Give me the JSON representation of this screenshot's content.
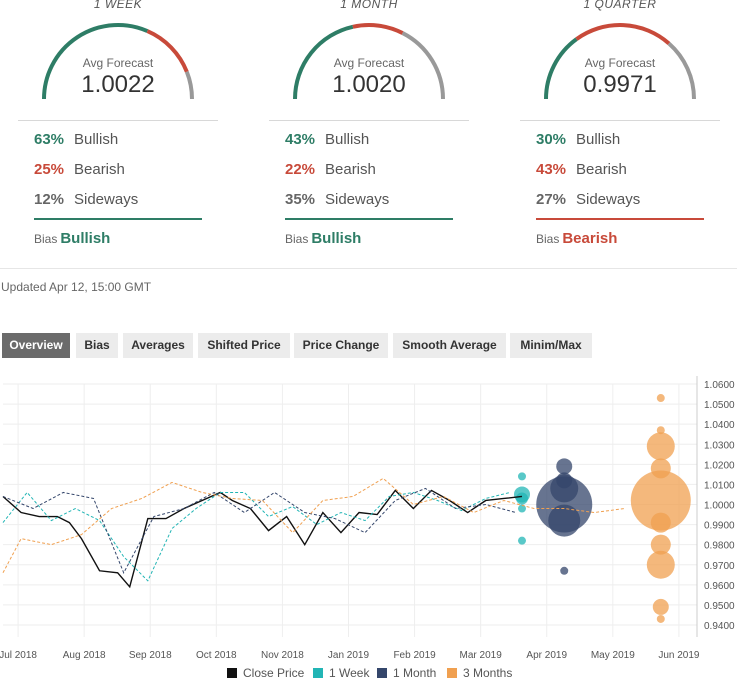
{
  "cards": [
    {
      "period": "1 WEEK",
      "avg_label": "Avg Forecast",
      "avg_value": "1.0022",
      "bullish_pct": "63%",
      "bullish_label": "Bullish",
      "bearish_pct": "25%",
      "bearish_label": "Bearish",
      "sideways_pct": "12%",
      "sideways_label": "Sideways",
      "bias_label": "Bias",
      "bias_value": "Bullish",
      "bias_color": "#2e7d66",
      "gauge": {
        "bullish": 0.63,
        "bearish": 0.25,
        "sideways": 0.12
      }
    },
    {
      "period": "1 MONTH",
      "avg_label": "Avg Forecast",
      "avg_value": "1.0020",
      "bullish_pct": "43%",
      "bullish_label": "Bullish",
      "bearish_pct": "22%",
      "bearish_label": "Bearish",
      "sideways_pct": "35%",
      "sideways_label": "Sideways",
      "bias_label": "Bias",
      "bias_value": "Bullish",
      "bias_color": "#2e7d66",
      "gauge": {
        "bullish": 0.43,
        "bearish": 0.22,
        "sideways": 0.35
      }
    },
    {
      "period": "1 QUARTER",
      "avg_label": "Avg Forecast",
      "avg_value": "0.9971",
      "bullish_pct": "30%",
      "bullish_label": "Bullish",
      "bearish_pct": "43%",
      "bearish_label": "Bearish",
      "sideways_pct": "27%",
      "sideways_label": "Sideways",
      "bias_label": "Bias",
      "bias_value": "Bearish",
      "bias_color": "#c84a3a",
      "gauge": {
        "bullish": 0.3,
        "bearish": 0.43,
        "sideways": 0.27
      }
    }
  ],
  "colors": {
    "bullish": "#2e7d66",
    "bearish": "#c84a3a",
    "sideways": "#999999"
  },
  "updated": "Updated Apr 12, 15:00 GMT",
  "tabs": [
    {
      "label": "Overview",
      "active": true
    },
    {
      "label": "Bias",
      "active": false
    },
    {
      "label": "Averages",
      "active": false
    },
    {
      "label": "Shifted Price",
      "active": false
    },
    {
      "label": "Price Change",
      "active": false
    },
    {
      "label": "Smooth Average",
      "active": false
    },
    {
      "label": "Minim/Max",
      "active": false
    }
  ],
  "chart_data": {
    "type": "line",
    "x_tick_labels": [
      "Jul 2018",
      "Aug 2018",
      "Sep 2018",
      "Oct 2018",
      "Nov 2018",
      "Jan 2019",
      "Feb 2019",
      "Mar 2019",
      "Apr 2019",
      "May 2019",
      "Jun 2019"
    ],
    "y_tick_labels": [
      "1.0600",
      "1.0500",
      "1.0400",
      "1.0300",
      "1.0200",
      "1.0100",
      "1.0000",
      "0.9900",
      "0.9800",
      "0.9700",
      "0.9600",
      "0.9500",
      "0.9400"
    ],
    "ylim": [
      0.94,
      1.06
    ],
    "xlim": [
      0,
      11.5
    ],
    "grid": true,
    "legend_position": "bottom",
    "series": [
      {
        "name": "Close Price",
        "color": "#111111",
        "dash": false,
        "x": [
          0,
          0.3,
          0.6,
          0.9,
          1.1,
          1.3,
          1.6,
          1.9,
          2.1,
          2.4,
          2.7,
          3.0,
          3.3,
          3.6,
          3.8,
          4.1,
          4.4,
          4.7,
          5.0,
          5.3,
          5.6,
          5.9,
          6.2,
          6.5,
          6.8,
          7.1,
          7.4,
          7.7,
          8.0,
          8.3,
          8.6
        ],
        "y": [
          1.004,
          0.996,
          0.994,
          0.994,
          0.991,
          0.983,
          0.967,
          0.966,
          0.959,
          0.993,
          0.993,
          0.998,
          1.002,
          1.006,
          1.002,
          0.998,
          0.987,
          0.994,
          0.98,
          0.996,
          0.986,
          0.996,
          0.995,
          1.007,
          0.998,
          1.007,
          1.002,
          0.996,
          1.002,
          1.003,
          1.004
        ]
      },
      {
        "name": "1 Week",
        "color": "#22b5b5",
        "dash": true,
        "x": [
          0,
          0.4,
          0.8,
          1.2,
          1.6,
          2.0,
          2.4,
          2.8,
          3.2,
          3.6,
          4.0,
          4.4,
          4.8,
          5.2,
          5.6,
          6.0,
          6.4,
          6.8,
          7.2,
          7.6,
          8.0,
          8.4
        ],
        "y": [
          0.991,
          1.006,
          0.992,
          0.998,
          0.992,
          0.974,
          0.962,
          0.988,
          0.998,
          1.006,
          1.006,
          0.994,
          0.999,
          0.99,
          0.996,
          0.992,
          1.004,
          1.006,
          1.002,
          0.997,
          1.003,
          1.006
        ]
      },
      {
        "name": "1 Month",
        "color": "#34466b",
        "dash": true,
        "x": [
          0,
          0.5,
          1.0,
          1.5,
          2.0,
          2.5,
          3.0,
          3.5,
          4.0,
          4.5,
          5.0,
          5.5,
          6.0,
          6.5,
          7.0,
          7.5,
          8.0,
          8.5
        ],
        "y": [
          1.004,
          0.998,
          1.006,
          1.003,
          0.966,
          0.994,
          0.998,
          1.006,
          0.996,
          1.006,
          0.996,
          0.993,
          0.986,
          1.002,
          1.008,
          0.998,
          1.0,
          0.996
        ]
      },
      {
        "name": "3 Months",
        "color": "#f0a050",
        "dash": true,
        "x": [
          0,
          0.3,
          0.8,
          1.3,
          1.8,
          2.3,
          2.8,
          3.3,
          3.8,
          4.3,
          4.8,
          5.3,
          5.8,
          6.3,
          6.8,
          7.3,
          7.8,
          8.3,
          8.8,
          9.3,
          9.8,
          10.3
        ],
        "y": [
          0.966,
          0.983,
          0.98,
          0.985,
          0.998,
          1.003,
          1.011,
          1.006,
          1.003,
          1.002,
          0.986,
          1.002,
          1.004,
          1.013,
          1.0,
          1.004,
          0.996,
          1.002,
          0.998,
          0.998,
          0.996,
          0.998
        ]
      }
    ],
    "bubbles": [
      {
        "series": "1 Week",
        "x": 8.6,
        "y": 1.014,
        "size": 1
      },
      {
        "series": "1 Week",
        "x": 8.6,
        "y": 1.005,
        "size": 3
      },
      {
        "series": "1 Week",
        "x": 8.6,
        "y": 1.003,
        "size": 2
      },
      {
        "series": "1 Week",
        "x": 8.6,
        "y": 0.998,
        "size": 1
      },
      {
        "series": "1 Week",
        "x": 8.6,
        "y": 0.982,
        "size": 1
      },
      {
        "series": "1 Month",
        "x": 9.3,
        "y": 1.019,
        "size": 3
      },
      {
        "series": "1 Month",
        "x": 9.3,
        "y": 1.012,
        "size": 3
      },
      {
        "series": "1 Month",
        "x": 9.3,
        "y": 1.008,
        "size": 6
      },
      {
        "series": "1 Month",
        "x": 9.3,
        "y": 1.0,
        "size": 13
      },
      {
        "series": "1 Month",
        "x": 9.3,
        "y": 0.992,
        "size": 7
      },
      {
        "series": "1 Month",
        "x": 9.3,
        "y": 0.967,
        "size": 1
      },
      {
        "series": "3 Months",
        "x": 10.9,
        "y": 1.053,
        "size": 1
      },
      {
        "series": "3 Months",
        "x": 10.9,
        "y": 1.037,
        "size": 1
      },
      {
        "series": "3 Months",
        "x": 10.9,
        "y": 1.029,
        "size": 6
      },
      {
        "series": "3 Months",
        "x": 10.9,
        "y": 1.018,
        "size": 4
      },
      {
        "series": "3 Months",
        "x": 10.9,
        "y": 1.002,
        "size": 14
      },
      {
        "series": "3 Months",
        "x": 10.9,
        "y": 0.991,
        "size": 4
      },
      {
        "series": "3 Months",
        "x": 10.9,
        "y": 0.98,
        "size": 4
      },
      {
        "series": "3 Months",
        "x": 10.9,
        "y": 0.97,
        "size": 6
      },
      {
        "series": "3 Months",
        "x": 10.9,
        "y": 0.949,
        "size": 3
      },
      {
        "series": "3 Months",
        "x": 10.9,
        "y": 0.943,
        "size": 1
      }
    ]
  },
  "legend": [
    {
      "label": "Close Price",
      "color": "#111111"
    },
    {
      "label": "1 Week",
      "color": "#22b5b5"
    },
    {
      "label": "1 Month",
      "color": "#34466b"
    },
    {
      "label": "3 Months",
      "color": "#f0a050"
    }
  ]
}
